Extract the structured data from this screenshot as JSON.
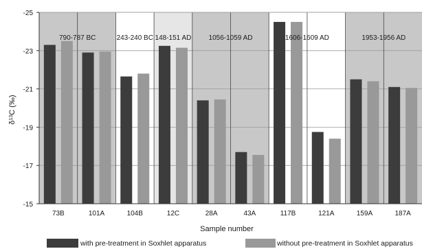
{
  "chart_data": {
    "type": "bar",
    "xlabel": "Sample number",
    "ylabel_main": "δ",
    "ylabel_sup": "13",
    "ylabel_rest": "C (‰)",
    "ylim": [
      -25,
      -15
    ],
    "y_inverted": true,
    "yticks": [
      "-25",
      "-23",
      "-21",
      "-19",
      "-17",
      "-15"
    ],
    "ytick_values": [
      -25,
      -23,
      -21,
      -19,
      -17,
      -15
    ],
    "grid": "horizontal",
    "categories": [
      "73B",
      "101A",
      "104B",
      "12C",
      "28A",
      "43A",
      "117B",
      "121A",
      "159A",
      "187A"
    ],
    "series": [
      {
        "name": "with pre-treatment in Soxhlet apparatus",
        "color": "#3c3c3c",
        "values": [
          -23.3,
          -22.9,
          -21.65,
          -23.25,
          -20.4,
          -17.7,
          -24.5,
          -18.75,
          -21.5,
          -21.1
        ]
      },
      {
        "name": "without pre-treatment in Soxhlet apparatus",
        "color": "#999999",
        "values": [
          -23.5,
          -22.95,
          -21.8,
          -23.15,
          -20.45,
          -17.55,
          -24.5,
          -18.4,
          -21.4,
          -21.05
        ]
      }
    ],
    "periods": [
      {
        "label": "790-787 BC",
        "categories": [
          "73B",
          "101A"
        ],
        "shade": "#c8c8c8"
      },
      {
        "label": "243-240 BC",
        "categories": [
          "104B"
        ],
        "shade": "#ffffff"
      },
      {
        "label": "148-151 AD",
        "categories": [
          "12C"
        ],
        "shade": "#e6e6e6"
      },
      {
        "label": "1056-1059 AD",
        "categories": [
          "28A",
          "43A"
        ],
        "shade": "#c8c8c8"
      },
      {
        "label": "1606-1609 AD",
        "categories": [
          "117B",
          "121A"
        ],
        "shade": "#ffffff"
      },
      {
        "label": "1953-1956 AD",
        "categories": [
          "159A",
          "187A"
        ],
        "shade": "#c8c8c8"
      }
    ],
    "legend_position": "bottom"
  }
}
